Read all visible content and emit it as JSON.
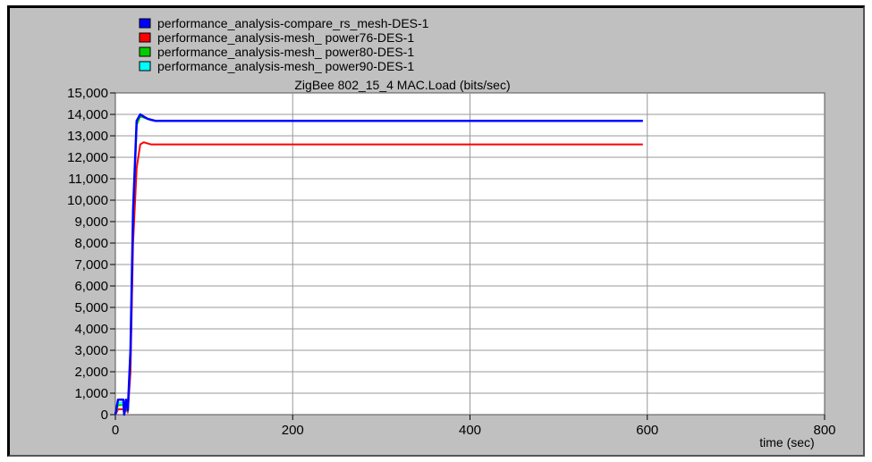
{
  "chart_data": {
    "type": "line",
    "title": "ZigBee 802_15_4 MAC.Load (bits/sec)",
    "xlabel": "time (sec)",
    "ylabel": "",
    "xlim": [
      0,
      800
    ],
    "ylim": [
      0,
      15000
    ],
    "x_ticks": [
      0,
      200,
      400,
      600,
      800
    ],
    "y_ticks": [
      0,
      1000,
      2000,
      3000,
      4000,
      5000,
      6000,
      7000,
      8000,
      9000,
      10000,
      11000,
      12000,
      13000,
      14000,
      15000
    ],
    "x_tick_labels": [
      "0",
      "200",
      "400",
      "600",
      "800"
    ],
    "y_tick_labels": [
      "0",
      "1,000",
      "2,000",
      "3,000",
      "4,000",
      "5,000",
      "6,000",
      "7,000",
      "8,000",
      "9,000",
      "10,000",
      "11,000",
      "12,000",
      "13,000",
      "14,000",
      "15,000"
    ],
    "grid": true,
    "legend_position": "top-left",
    "series": [
      {
        "name": "performance_analysis-compare_rs_mesh-DES-1",
        "color": "#0000ff",
        "x": [
          0,
          3,
          6,
          9,
          10,
          12,
          14,
          17,
          20,
          24,
          28,
          32,
          36,
          40,
          45,
          50,
          60,
          100,
          200,
          300,
          400,
          500,
          595
        ],
        "y": [
          0,
          700,
          700,
          700,
          0,
          700,
          200,
          3000,
          9500,
          13700,
          14000,
          13900,
          13800,
          13750,
          13700,
          13700,
          13700,
          13700,
          13700,
          13700,
          13700,
          13700,
          13700
        ]
      },
      {
        "name": "performance_analysis-mesh_ power76-DES-1",
        "color": "#ff0000",
        "x": [
          0,
          3,
          6,
          9,
          10,
          12,
          14,
          17,
          20,
          24,
          28,
          32,
          36,
          40,
          45,
          50,
          60,
          100,
          200,
          300,
          400,
          500,
          595
        ],
        "y": [
          0,
          250,
          250,
          250,
          0,
          300,
          100,
          2000,
          8000,
          11500,
          12600,
          12700,
          12650,
          12600,
          12600,
          12600,
          12600,
          12600,
          12600,
          12600,
          12600,
          12600,
          12600
        ]
      },
      {
        "name": "performance_analysis-mesh_ power80-DES-1",
        "color": "#00cc00",
        "x": [
          0,
          3,
          6,
          9,
          10,
          12,
          14,
          17,
          20,
          24,
          28,
          32,
          36,
          40,
          45,
          50
        ],
        "y": [
          0,
          450,
          450,
          450,
          0,
          500,
          150,
          2800,
          9200,
          13500,
          13900,
          13850,
          13800,
          13750,
          13700,
          13700
        ]
      },
      {
        "name": "performance_analysis-mesh_ power90-DES-1",
        "color": "#00ffff",
        "x": [
          0,
          3,
          6,
          9,
          10,
          12,
          14,
          17,
          20,
          24,
          28,
          32,
          36,
          40,
          45,
          50
        ],
        "y": [
          0,
          550,
          550,
          550,
          0,
          600,
          150,
          2900,
          9400,
          13600,
          13950,
          13900,
          13800,
          13750,
          13700,
          13700
        ]
      }
    ]
  }
}
